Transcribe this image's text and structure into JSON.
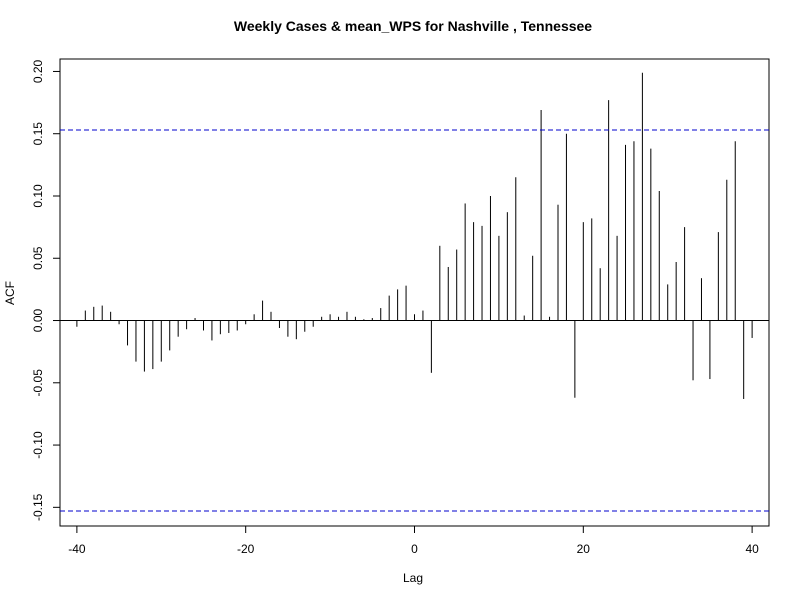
{
  "chart_data": {
    "type": "bar",
    "title": "Weekly Cases & mean_WPS for Nashville , Tennessee",
    "xlabel": "Lag",
    "ylabel": "ACF",
    "xlim": [
      -42,
      42
    ],
    "ylim": [
      -0.165,
      0.21
    ],
    "x_ticks": [
      -40,
      -20,
      0,
      20,
      40
    ],
    "x_tick_labels": [
      "-40",
      "-20",
      "0",
      "20",
      "40"
    ],
    "y_ticks": [
      -0.15,
      -0.1,
      -0.05,
      0.0,
      0.05,
      0.1,
      0.15,
      0.2
    ],
    "y_tick_labels": [
      "-0.15",
      "-0.10",
      "-0.05",
      "0.00",
      "0.05",
      "0.10",
      "0.15",
      "0.20"
    ],
    "confidence_bound": 0.153,
    "confidence_color": "#0000cc",
    "x": [
      -40,
      -39,
      -38,
      -37,
      -36,
      -35,
      -34,
      -33,
      -32,
      -31,
      -30,
      -29,
      -28,
      -27,
      -26,
      -25,
      -24,
      -23,
      -22,
      -21,
      -20,
      -19,
      -18,
      -17,
      -16,
      -15,
      -14,
      -13,
      -12,
      -11,
      -10,
      -9,
      -8,
      -7,
      -6,
      -5,
      -4,
      -3,
      -2,
      -1,
      0,
      1,
      2,
      3,
      4,
      5,
      6,
      7,
      8,
      9,
      10,
      11,
      12,
      13,
      14,
      15,
      16,
      17,
      18,
      19,
      20,
      21,
      22,
      23,
      24,
      25,
      26,
      27,
      28,
      29,
      30,
      31,
      32,
      33,
      34,
      35,
      36,
      37,
      38,
      39,
      40
    ],
    "values": [
      -0.005,
      0.008,
      0.011,
      0.012,
      0.007,
      -0.003,
      -0.02,
      -0.033,
      -0.041,
      -0.039,
      -0.033,
      -0.024,
      -0.013,
      -0.007,
      0.002,
      -0.008,
      -0.016,
      -0.011,
      -0.01,
      -0.008,
      -0.003,
      0.005,
      0.016,
      0.007,
      -0.006,
      -0.013,
      -0.015,
      -0.009,
      -0.005,
      0.003,
      0.005,
      0.003,
      0.007,
      0.003,
      0.001,
      0.002,
      0.01,
      0.02,
      0.025,
      0.028,
      0.005,
      0.008,
      -0.042,
      0.06,
      0.043,
      0.057,
      0.094,
      0.079,
      0.076,
      0.1,
      0.068,
      0.087,
      0.115,
      0.004,
      0.052,
      0.169,
      0.003,
      0.093,
      0.15,
      -0.062,
      0.079,
      0.082,
      0.042,
      0.177,
      0.068,
      0.141,
      0.144,
      0.199,
      0.138,
      0.104,
      0.029,
      0.047,
      0.075,
      -0.048,
      0.034,
      -0.047,
      0.071,
      0.113,
      0.144,
      -0.063,
      -0.014
    ]
  }
}
